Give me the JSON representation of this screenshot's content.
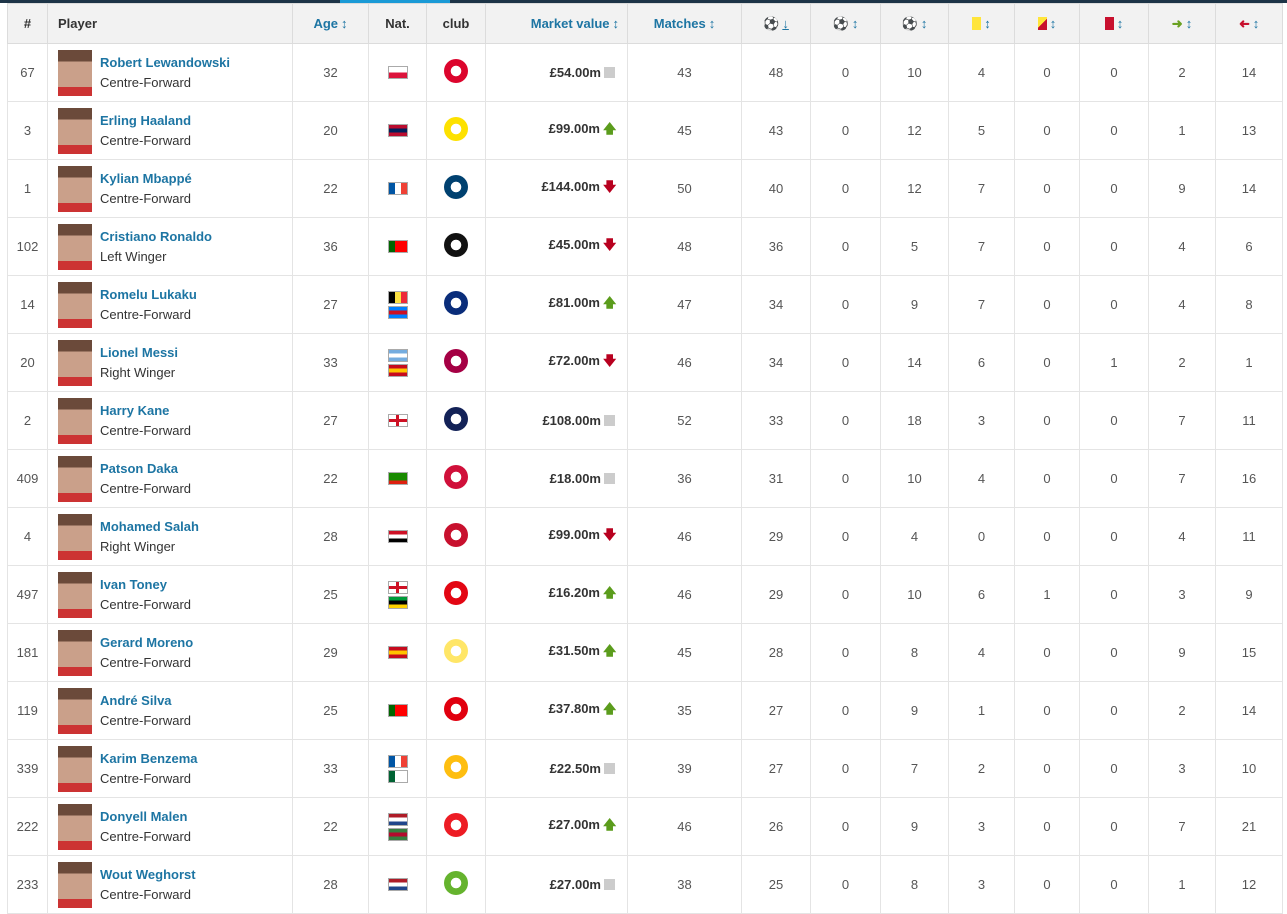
{
  "header": {
    "rank": "#",
    "player": "Player",
    "age": "Age",
    "nat": "Nat.",
    "club": "club",
    "market_value": "Market value",
    "matches": "Matches",
    "sort_icon": "↕",
    "sorted_icon": "↓"
  },
  "stat_icons": [
    "goals-icon",
    "own-goals-icon",
    "assists-icon",
    "yellow-card-icon",
    "yellow-red-card-icon",
    "red-card-icon",
    "sub-on-icon",
    "sub-off-icon"
  ],
  "colors": {
    "link": "#1d75a3",
    "up": "#5b9c1c",
    "down": "#b8001f"
  },
  "rows": [
    {
      "rank": "67",
      "name": "Robert Lewandowski",
      "pos": "Centre-Forward",
      "age": "32",
      "flags": [
        [
          "h",
          "#fff",
          "#dc143c"
        ]
      ],
      "club": [
        "bayern-logo",
        "#dc052d"
      ],
      "mv": "£54.00m",
      "trend": "none",
      "matches": "43",
      "goals": "48",
      "og": "0",
      "ast": "10",
      "yc": "4",
      "yrc": "0",
      "rc": "0",
      "on": "2",
      "off": "14"
    },
    {
      "rank": "3",
      "name": "Erling Haaland",
      "pos": "Centre-Forward",
      "age": "20",
      "flags": [
        [
          "h",
          "#ba0c2f",
          "#00205b",
          "#ba0c2f"
        ]
      ],
      "club": [
        "dortmund-logo",
        "#fde100"
      ],
      "mv": "£99.00m",
      "trend": "up",
      "matches": "45",
      "goals": "43",
      "og": "0",
      "ast": "12",
      "yc": "5",
      "yrc": "0",
      "rc": "0",
      "on": "1",
      "off": "13"
    },
    {
      "rank": "1",
      "name": "Kylian Mbappé",
      "pos": "Centre-Forward",
      "age": "22",
      "flags": [
        [
          "v",
          "#0055a4",
          "#fff",
          "#ef4135"
        ]
      ],
      "club": [
        "psg-logo",
        "#004170"
      ],
      "mv": "£144.00m",
      "trend": "down",
      "matches": "50",
      "goals": "40",
      "og": "0",
      "ast": "12",
      "yc": "7",
      "yrc": "0",
      "rc": "0",
      "on": "9",
      "off": "14"
    },
    {
      "rank": "102",
      "name": "Cristiano Ronaldo",
      "pos": "Left Winger",
      "age": "36",
      "flags": [
        [
          "v",
          "#006600",
          "#ff0000",
          "#ff0000"
        ]
      ],
      "club": [
        "juventus-logo",
        "#111"
      ],
      "mv": "£45.00m",
      "trend": "down",
      "matches": "48",
      "goals": "36",
      "og": "0",
      "ast": "5",
      "yc": "7",
      "yrc": "0",
      "rc": "0",
      "on": "4",
      "off": "6"
    },
    {
      "rank": "14",
      "name": "Romelu Lukaku",
      "pos": "Centre-Forward",
      "age": "27",
      "flags": [
        [
          "v",
          "#000",
          "#fae042",
          "#ed2939"
        ],
        [
          "h",
          "#007fff",
          "#ce1021",
          "#007fff"
        ]
      ],
      "club": [
        "inter-logo",
        "#0a2d7a"
      ],
      "mv": "£81.00m",
      "trend": "up",
      "matches": "47",
      "goals": "34",
      "og": "0",
      "ast": "9",
      "yc": "7",
      "yrc": "0",
      "rc": "0",
      "on": "4",
      "off": "8"
    },
    {
      "rank": "20",
      "name": "Lionel Messi",
      "pos": "Right Winger",
      "age": "33",
      "flags": [
        [
          "h",
          "#74acdf",
          "#fff",
          "#74acdf"
        ],
        [
          "h",
          "#c60b1e",
          "#ffc400",
          "#c60b1e"
        ]
      ],
      "club": [
        "barcelona-logo",
        "#a50044"
      ],
      "mv": "£72.00m",
      "trend": "down",
      "matches": "46",
      "goals": "34",
      "og": "0",
      "ast": "14",
      "yc": "6",
      "yrc": "0",
      "rc": "1",
      "on": "2",
      "off": "1"
    },
    {
      "rank": "2",
      "name": "Harry Kane",
      "pos": "Centre-Forward",
      "age": "27",
      "flags": [
        [
          "x",
          "#fff",
          "#ce1124"
        ]
      ],
      "club": [
        "tottenham-logo",
        "#132257"
      ],
      "mv": "£108.00m",
      "trend": "none",
      "matches": "52",
      "goals": "33",
      "og": "0",
      "ast": "18",
      "yc": "3",
      "yrc": "0",
      "rc": "0",
      "on": "7",
      "off": "11"
    },
    {
      "rank": "409",
      "name": "Patson Daka",
      "pos": "Centre-Forward",
      "age": "22",
      "flags": [
        [
          "h",
          "#198a00",
          "#198a00",
          "#de2010"
        ]
      ],
      "club": [
        "salzburg-logo",
        "#d0103a"
      ],
      "mv": "£18.00m",
      "trend": "none",
      "matches": "36",
      "goals": "31",
      "og": "0",
      "ast": "10",
      "yc": "4",
      "yrc": "0",
      "rc": "0",
      "on": "7",
      "off": "16"
    },
    {
      "rank": "4",
      "name": "Mohamed Salah",
      "pos": "Right Winger",
      "age": "28",
      "flags": [
        [
          "h",
          "#ce1126",
          "#fff",
          "#000"
        ]
      ],
      "club": [
        "liverpool-logo",
        "#c8102e"
      ],
      "mv": "£99.00m",
      "trend": "down",
      "matches": "46",
      "goals": "29",
      "og": "0",
      "ast": "4",
      "yc": "0",
      "yrc": "0",
      "rc": "0",
      "on": "4",
      "off": "11"
    },
    {
      "rank": "497",
      "name": "Ivan Toney",
      "pos": "Centre-Forward",
      "age": "25",
      "flags": [
        [
          "x",
          "#fff",
          "#ce1124"
        ],
        [
          "h",
          "#009b3a",
          "#000",
          "#fed100"
        ]
      ],
      "club": [
        "brentford-logo",
        "#e30613"
      ],
      "mv": "£16.20m",
      "trend": "up",
      "matches": "46",
      "goals": "29",
      "og": "0",
      "ast": "10",
      "yc": "6",
      "yrc": "1",
      "rc": "0",
      "on": "3",
      "off": "9"
    },
    {
      "rank": "181",
      "name": "Gerard Moreno",
      "pos": "Centre-Forward",
      "age": "29",
      "flags": [
        [
          "h",
          "#c60b1e",
          "#ffc400",
          "#c60b1e"
        ]
      ],
      "club": [
        "villarreal-logo",
        "#ffe667"
      ],
      "mv": "£31.50m",
      "trend": "up",
      "matches": "45",
      "goals": "28",
      "og": "0",
      "ast": "8",
      "yc": "4",
      "yrc": "0",
      "rc": "0",
      "on": "9",
      "off": "15"
    },
    {
      "rank": "119",
      "name": "André Silva",
      "pos": "Centre-Forward",
      "age": "25",
      "flags": [
        [
          "v",
          "#006600",
          "#ff0000",
          "#ff0000"
        ]
      ],
      "club": [
        "frankfurt-logo",
        "#e1000f"
      ],
      "mv": "£37.80m",
      "trend": "up",
      "matches": "35",
      "goals": "27",
      "og": "0",
      "ast": "9",
      "yc": "1",
      "yrc": "0",
      "rc": "0",
      "on": "2",
      "off": "14"
    },
    {
      "rank": "339",
      "name": "Karim Benzema",
      "pos": "Centre-Forward",
      "age": "33",
      "flags": [
        [
          "v",
          "#0055a4",
          "#fff",
          "#ef4135"
        ],
        [
          "v",
          "#006233",
          "#fff",
          "#fff"
        ]
      ],
      "club": [
        "real-madrid-logo",
        "#febe10"
      ],
      "mv": "£22.50m",
      "trend": "none",
      "matches": "39",
      "goals": "27",
      "og": "0",
      "ast": "7",
      "yc": "2",
      "yrc": "0",
      "rc": "0",
      "on": "3",
      "off": "10"
    },
    {
      "rank": "222",
      "name": "Donyell Malen",
      "pos": "Centre-Forward",
      "age": "22",
      "flags": [
        [
          "h",
          "#ae1c28",
          "#fff",
          "#21468b"
        ],
        [
          "h",
          "#377e3f",
          "#b40a2d",
          "#377e3f"
        ]
      ],
      "club": [
        "psv-logo",
        "#ed1c24"
      ],
      "mv": "£27.00m",
      "trend": "up",
      "matches": "46",
      "goals": "26",
      "og": "0",
      "ast": "9",
      "yc": "3",
      "yrc": "0",
      "rc": "0",
      "on": "7",
      "off": "21"
    },
    {
      "rank": "233",
      "name": "Wout Weghorst",
      "pos": "Centre-Forward",
      "age": "28",
      "flags": [
        [
          "h",
          "#ae1c28",
          "#fff",
          "#21468b"
        ]
      ],
      "club": [
        "wolfsburg-logo",
        "#65b32e"
      ],
      "mv": "£27.00m",
      "trend": "none",
      "matches": "38",
      "goals": "25",
      "og": "0",
      "ast": "8",
      "yc": "3",
      "yrc": "0",
      "rc": "0",
      "on": "1",
      "off": "12"
    }
  ]
}
